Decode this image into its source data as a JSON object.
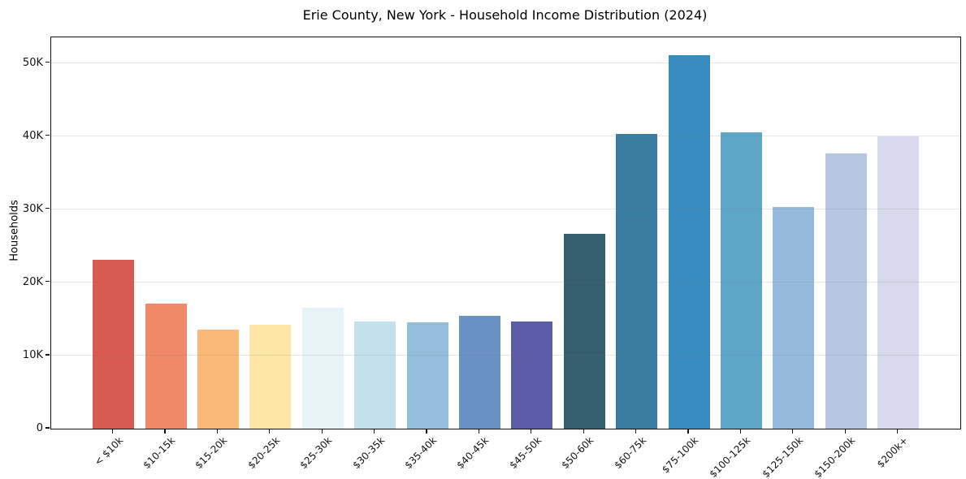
{
  "chart_data": {
    "type": "bar",
    "title": "Erie County, New York - Household Income Distribution (2024)",
    "xlabel": "",
    "ylabel": "Households",
    "categories": [
      "< $10k",
      "$10-15k",
      "$15-20k",
      "$20-25k",
      "$25-30k",
      "$30-35k",
      "$35-40k",
      "$40-45k",
      "$45-50k",
      "$50-60k",
      "$60-75k",
      "$75-100k",
      "$100-125k",
      "$125-150k",
      "$150-200k",
      "$200k+"
    ],
    "values": [
      23100,
      17100,
      13600,
      14200,
      16500,
      14700,
      14500,
      15400,
      14700,
      26700,
      40300,
      51100,
      40500,
      30300,
      37600,
      40000
    ],
    "bar_colors": [
      "#D85A51",
      "#F08968",
      "#FBB977",
      "#FDE6A6",
      "#E7F3F6",
      "#C4E0EC",
      "#94BDDB",
      "#6A91C4",
      "#5B5BA9",
      "#355F6E",
      "#3A7BA2",
      "#378CBF",
      "#5DA6C8",
      "#96BADB",
      "#B6C7E3",
      "#D8DAEB"
    ],
    "ylim": [
      0,
      53500
    ],
    "yticks": [
      {
        "value": 0,
        "label": "0"
      },
      {
        "value": 10000,
        "label": "10K"
      },
      {
        "value": 20000,
        "label": "20K"
      },
      {
        "value": 30000,
        "label": "30K"
      },
      {
        "value": 40000,
        "label": "40K"
      },
      {
        "value": 50000,
        "label": "50K"
      }
    ],
    "grid": "horizontal",
    "legend_position": "none",
    "x_tick_rotation_deg": 45
  }
}
